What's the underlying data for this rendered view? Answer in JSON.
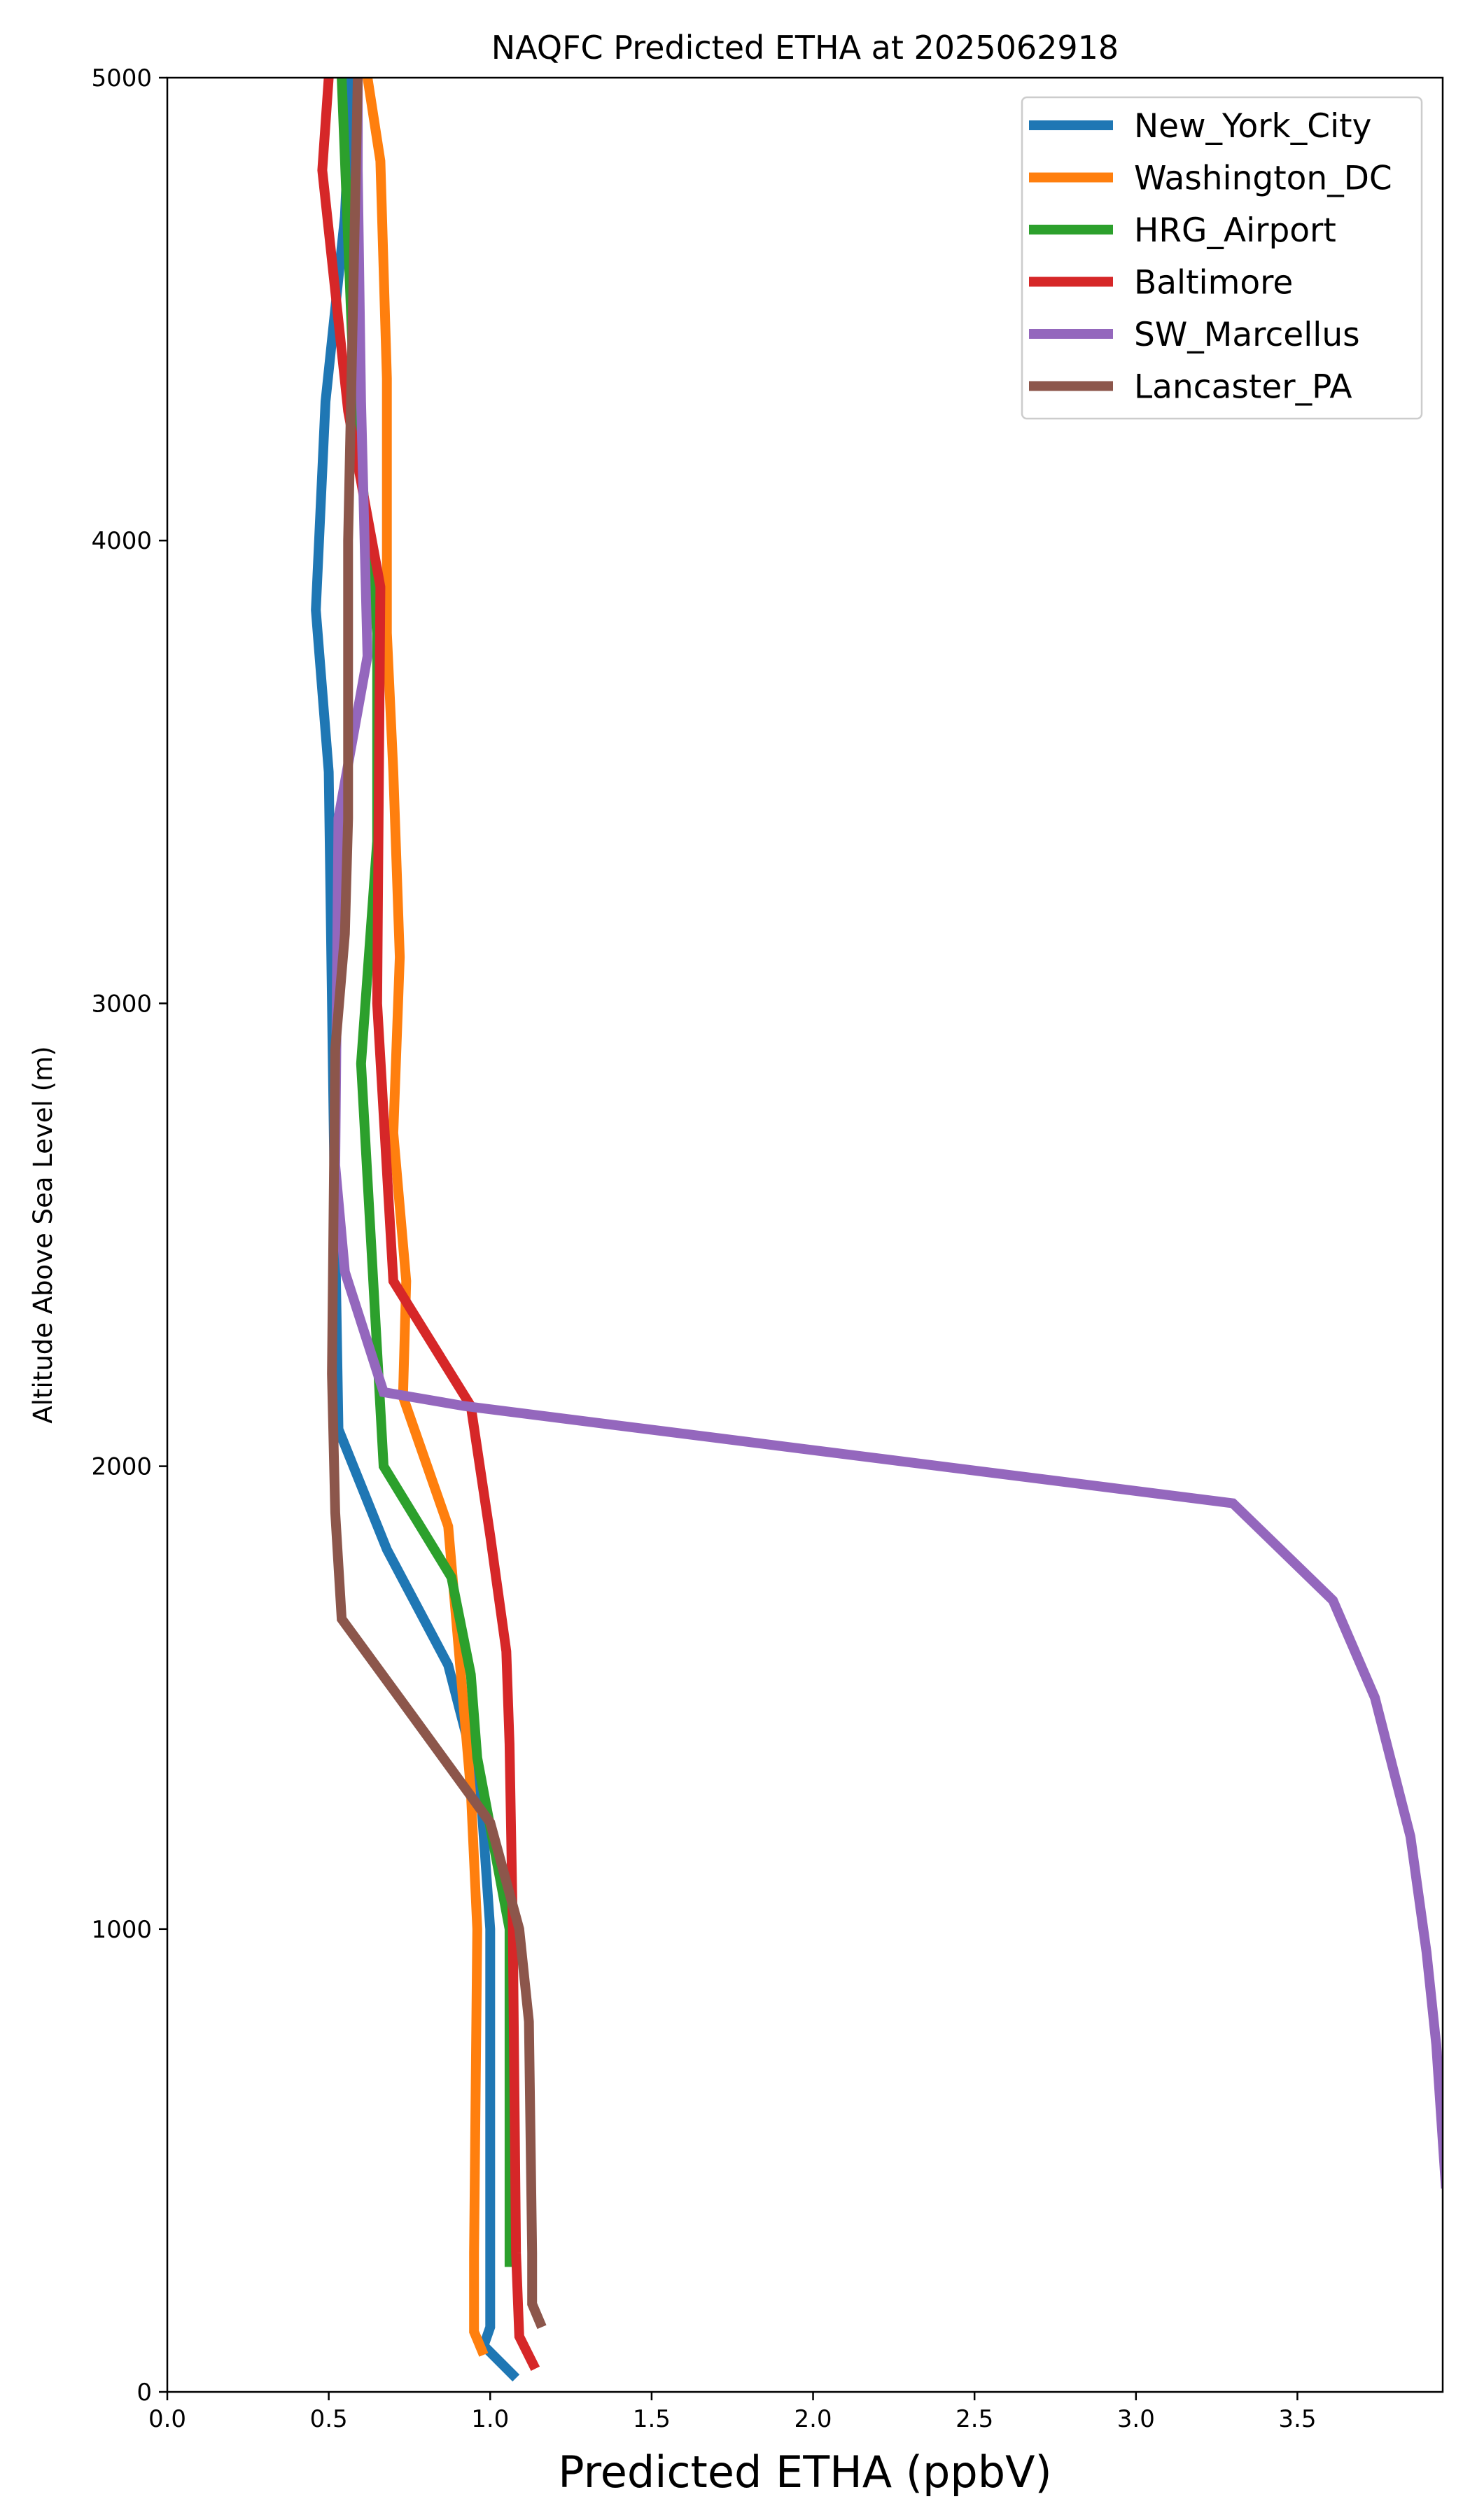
{
  "chart_data": {
    "type": "line",
    "title": "NAQFC Predicted ETHA at 2025062918",
    "xlabel": "Predicted ETHA (ppbV)",
    "ylabel": "Altitude Above Sea Level (m)",
    "xlim": [
      0,
      3.95
    ],
    "ylim": [
      0,
      5000
    ],
    "xticks": [
      "0.0",
      "0.5",
      "1.0",
      "1.5",
      "2.0",
      "2.5",
      "3.0",
      "3.5"
    ],
    "xtick_values": [
      0,
      0.5,
      1.0,
      1.5,
      2.0,
      2.5,
      3.0,
      3.5
    ],
    "yticks": [
      "0",
      "1000",
      "2000",
      "3000",
      "4000",
      "5000"
    ],
    "ytick_values": [
      0,
      1000,
      2000,
      3000,
      4000,
      5000
    ],
    "legend_position": "top-right",
    "grid": false,
    "series": [
      {
        "name": "New_York_City",
        "color": "#1f77b4",
        "points": [
          [
            1.08,
            30
          ],
          [
            0.98,
            100
          ],
          [
            1.0,
            140
          ],
          [
            1.0,
            300
          ],
          [
            1.0,
            1000
          ],
          [
            0.97,
            1300
          ],
          [
            0.87,
            1570
          ],
          [
            0.68,
            1820
          ],
          [
            0.53,
            2080
          ],
          [
            0.52,
            2500
          ],
          [
            0.5,
            3500
          ],
          [
            0.46,
            3850
          ],
          [
            0.49,
            4300
          ],
          [
            0.55,
            4700
          ],
          [
            0.57,
            5000
          ]
        ]
      },
      {
        "name": "Washington_DC",
        "color": "#ff7f0e",
        "points": [
          [
            0.98,
            80
          ],
          [
            0.95,
            130
          ],
          [
            0.95,
            300
          ],
          [
            0.96,
            1000
          ],
          [
            0.94,
            1300
          ],
          [
            0.87,
            1870
          ],
          [
            0.73,
            2150
          ],
          [
            0.74,
            2400
          ],
          [
            0.7,
            2720
          ],
          [
            0.72,
            3100
          ],
          [
            0.7,
            3500
          ],
          [
            0.68,
            3800
          ],
          [
            0.68,
            4350
          ],
          [
            0.66,
            4820
          ],
          [
            0.62,
            5000
          ]
        ]
      },
      {
        "name": "HRG_Airport",
        "color": "#2ca02c",
        "points": [
          [
            1.06,
            270
          ],
          [
            1.06,
            500
          ],
          [
            1.06,
            1000
          ],
          [
            0.96,
            1370
          ],
          [
            0.94,
            1550
          ],
          [
            0.88,
            1760
          ],
          [
            0.67,
            2000
          ],
          [
            0.6,
            2870
          ],
          [
            0.65,
            3350
          ],
          [
            0.65,
            3800
          ],
          [
            0.58,
            4300
          ],
          [
            0.54,
            5000
          ]
        ]
      },
      {
        "name": "Baltimore",
        "color": "#d62728",
        "points": [
          [
            1.14,
            50
          ],
          [
            1.09,
            120
          ],
          [
            1.08,
            300
          ],
          [
            1.07,
            1000
          ],
          [
            1.06,
            1400
          ],
          [
            1.05,
            1600
          ],
          [
            1.0,
            1850
          ],
          [
            0.94,
            2130
          ],
          [
            0.7,
            2400
          ],
          [
            0.65,
            3000
          ],
          [
            0.66,
            3900
          ],
          [
            0.56,
            4280
          ],
          [
            0.48,
            4800
          ],
          [
            0.5,
            5000
          ]
        ]
      },
      {
        "name": "SW_Marcellus",
        "color": "#9467bd",
        "points": [
          [
            3.96,
            440
          ],
          [
            3.93,
            750
          ],
          [
            3.9,
            950
          ],
          [
            3.85,
            1200
          ],
          [
            3.74,
            1500
          ],
          [
            3.61,
            1710
          ],
          [
            3.3,
            1920
          ],
          [
            0.92,
            2130
          ],
          [
            0.67,
            2160
          ],
          [
            0.55,
            2420
          ],
          [
            0.52,
            2650
          ],
          [
            0.53,
            3400
          ],
          [
            0.62,
            3750
          ],
          [
            0.6,
            4300
          ],
          [
            0.59,
            4800
          ],
          [
            0.59,
            5000
          ]
        ]
      },
      {
        "name": "Lancaster_PA",
        "color": "#8c564b",
        "points": [
          [
            1.16,
            140
          ],
          [
            1.13,
            190
          ],
          [
            1.13,
            300
          ],
          [
            1.12,
            800
          ],
          [
            1.09,
            1000
          ],
          [
            1.0,
            1230
          ],
          [
            0.76,
            1460
          ],
          [
            0.54,
            1670
          ],
          [
            0.52,
            1900
          ],
          [
            0.51,
            2200
          ],
          [
            0.52,
            2900
          ],
          [
            0.55,
            3150
          ],
          [
            0.56,
            3400
          ],
          [
            0.56,
            4000
          ],
          [
            0.59,
            5000
          ]
        ]
      }
    ]
  }
}
